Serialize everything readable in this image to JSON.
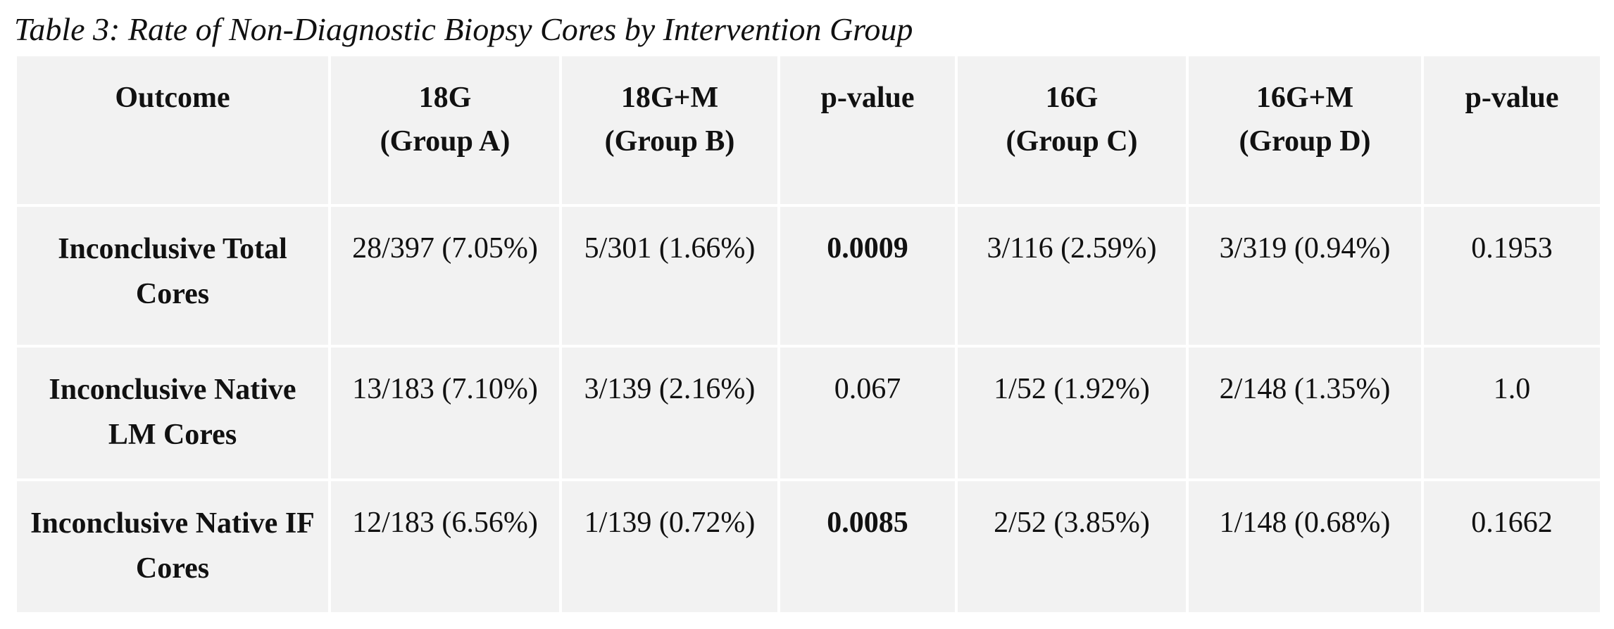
{
  "caption": "Table 3: Rate of Non-Diagnostic Biopsy Cores by Intervention Group",
  "columns": [
    {
      "line1": "Outcome",
      "line2": ""
    },
    {
      "line1": "18G",
      "line2": "(Group A)"
    },
    {
      "line1": "18G+M",
      "line2": "(Group B)"
    },
    {
      "line1": "p-value",
      "line2": ""
    },
    {
      "line1": "16G",
      "line2": "(Group C)"
    },
    {
      "line1": "16G+M",
      "line2": "(Group D)"
    },
    {
      "line1": "p-value",
      "line2": ""
    }
  ],
  "rows": [
    {
      "label": "Inconclusive Total Cores",
      "group_a": "28/397 (7.05%)",
      "group_b": "5/301 (1.66%)",
      "p_value_ab": "0.0009",
      "group_c": "3/116 (2.59%)",
      "group_d": "3/319 (0.94%)",
      "p_value_cd": "0.1953"
    },
    {
      "label": "Inconclusive Native LM Cores",
      "group_a": "13/183 (7.10%)",
      "group_b": "3/139 (2.16%)",
      "p_value_ab": "0.067",
      "group_c": "1/52 (1.92%)",
      "group_d": "2/148 (1.35%)",
      "p_value_cd": "1.0"
    },
    {
      "label": "Inconclusive Native IF Cores",
      "group_a": "12/183 (6.56%)",
      "group_b": "1/139 (0.72%)",
      "p_value_ab": "0.0085",
      "group_c": "2/52 (3.85%)",
      "group_d": "1/148 (0.68%)",
      "p_value_cd": "0.1662"
    }
  ]
}
